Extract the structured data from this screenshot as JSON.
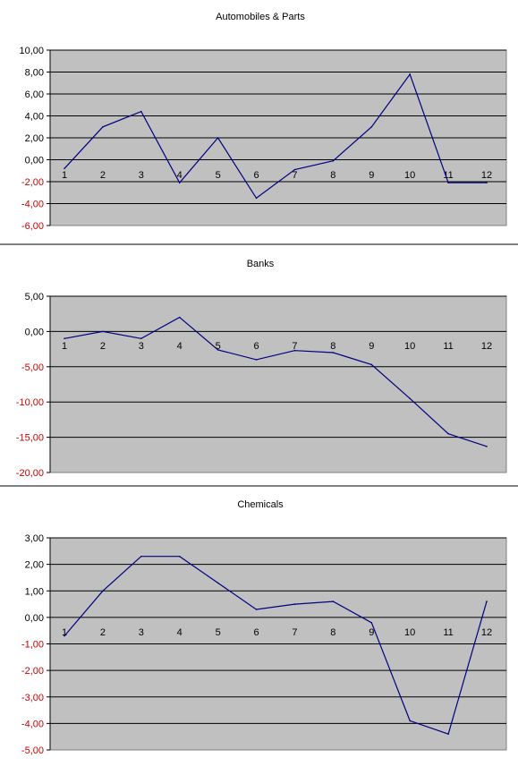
{
  "chart_data": [
    {
      "type": "line",
      "title": "Automobiles & Parts",
      "categories": [
        "1",
        "2",
        "3",
        "4",
        "5",
        "6",
        "7",
        "8",
        "9",
        "10",
        "11",
        "12"
      ],
      "values": [
        -0.8,
        3.0,
        4.4,
        -2.1,
        2.0,
        -3.5,
        -0.9,
        -0.1,
        3.0,
        7.8,
        -2.1,
        -2.1
      ],
      "ylim": [
        -6,
        10
      ],
      "yticks": [
        10,
        8,
        6,
        4,
        2,
        0,
        -2,
        -4,
        -6
      ],
      "ytick_labels": [
        "10,00",
        "8,00",
        "6,00",
        "4,00",
        "2,00",
        "0,00",
        "-2,00",
        "-4,00",
        "-6,00"
      ],
      "negative_label_color": "#cc0000",
      "plot_bg": "#c0c0c0",
      "line_color": "#000080",
      "grid": true
    },
    {
      "type": "line",
      "title": "Banks",
      "categories": [
        "1",
        "2",
        "3",
        "4",
        "5",
        "6",
        "7",
        "8",
        "9",
        "10",
        "11",
        "12"
      ],
      "values": [
        -1.0,
        0.0,
        -1.0,
        2.0,
        -2.6,
        -4.0,
        -2.7,
        -3.0,
        -4.7,
        -9.5,
        -14.5,
        -16.3
      ],
      "ylim": [
        -20,
        5
      ],
      "yticks": [
        5,
        0,
        -5,
        -10,
        -15,
        -20
      ],
      "ytick_labels": [
        "5,00",
        "0,00",
        "-5,00",
        "-10,00",
        "-15,00",
        "-20,00"
      ],
      "negative_label_color": "#cc0000",
      "plot_bg": "#c0c0c0",
      "line_color": "#000080",
      "grid": true
    },
    {
      "type": "line",
      "title": "Chemicals",
      "categories": [
        "1",
        "2",
        "3",
        "4",
        "5",
        "6",
        "7",
        "8",
        "9",
        "10",
        "11",
        "12"
      ],
      "values": [
        -0.7,
        1.0,
        2.3,
        2.3,
        1.3,
        0.3,
        0.5,
        0.6,
        -0.2,
        -3.9,
        -4.4,
        0.6
      ],
      "ylim": [
        -5,
        3
      ],
      "yticks": [
        3,
        2,
        1,
        0,
        -1,
        -2,
        -3,
        -4,
        -5
      ],
      "ytick_labels": [
        "3,00",
        "2,00",
        "1,00",
        "0,00",
        "-1,00",
        "-2,00",
        "-3,00",
        "-4,00",
        "-5,00"
      ],
      "negative_label_color": "#cc0000",
      "plot_bg": "#c0c0c0",
      "line_color": "#000080",
      "grid": true
    }
  ]
}
